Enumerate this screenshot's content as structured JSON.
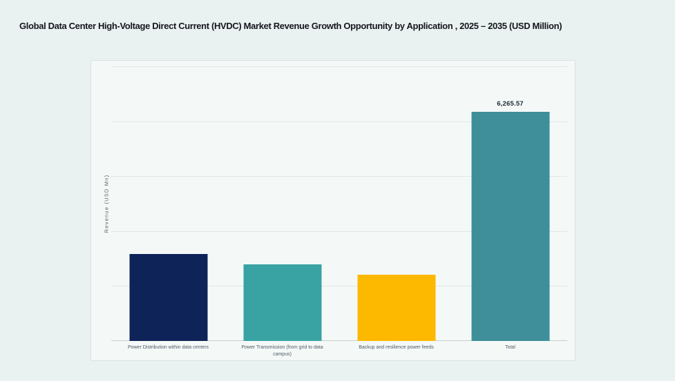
{
  "page": {
    "title": "Global Data Center High-Voltage Direct Current (HVDC) Market Revenue Growth Opportunity by Application , 2025 – 2035 (USD Million)"
  },
  "colors": {
    "page_bg": "#e9f2f0",
    "card_bg": "#f4f9f8",
    "card_border": "#d9e2e0",
    "gridline": "#dfe7e5",
    "axis_line": "#c6d0ce",
    "title_text": "#16161e",
    "tick_text": "#4e5a63",
    "value_label_text": "#1f2a36"
  },
  "chart_data": {
    "type": "bar",
    "title": "Global Data Center High-Voltage Direct Current (HVDC) Market Revenue Growth Opportunity by Application , 2025 – 2035 (USD Million)",
    "xlabel": "",
    "ylabel": "Revenue (USD Mn)",
    "categories": [
      "Power Distribution within data centers",
      "Power Transmission (from grid to data campus)",
      "Backup and resilience power feeds",
      "Total"
    ],
    "values": [
      2370,
      2090,
      1805,
      6265.57
    ],
    "value_labels": [
      "",
      "",
      "",
      "6,265.57"
    ],
    "bar_colors": [
      "#0e2358",
      "#39a3a3",
      "#fcb900",
      "#3e8f9a"
    ],
    "ylim": [
      0,
      7500
    ],
    "grid": true,
    "gridline_count": 6,
    "legend_position": "none"
  }
}
